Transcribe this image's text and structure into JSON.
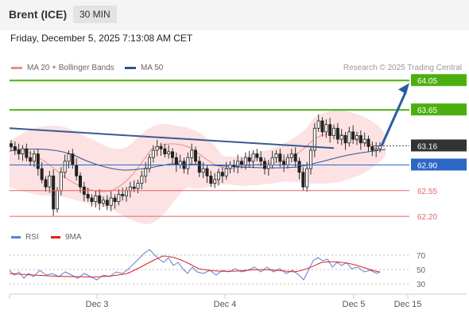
{
  "header": {
    "instrument": "Brent (ICE)",
    "timeframe": "30 MIN"
  },
  "datetime": "Friday, December 5, 2025 7:13:08 AM CET",
  "legend": {
    "ma20": {
      "label": "MA 20 + Bollinger Bands",
      "color": "#f08a8a"
    },
    "ma50": {
      "label": "MA 50",
      "color": "#2d5597"
    }
  },
  "credit": "Research © 2025 Trading Central",
  "rsi_legend": {
    "rsi": {
      "label": "RSI",
      "color": "#5b7fd6"
    },
    "ma9": {
      "label": "9MA",
      "color": "#e02020"
    }
  },
  "chart_data": {
    "type": "candlestick",
    "y_range": [
      62.05,
      64.15
    ],
    "x_ticks": [
      "Dec 3",
      "Dec 4",
      "Dec 5",
      "Dec 15"
    ],
    "current_price": "63.16",
    "price_levels": [
      {
        "value": 64.05,
        "label": "64.05",
        "kind": "resistance",
        "color": "#4caf10"
      },
      {
        "value": 63.65,
        "label": "63.65",
        "kind": "resistance",
        "color": "#4caf10"
      },
      {
        "value": 63.16,
        "label": "63.16",
        "kind": "current",
        "color": "#333333"
      },
      {
        "value": 62.9,
        "label": "62.90",
        "kind": "pivot",
        "color": "#2e66c8"
      },
      {
        "value": 62.55,
        "label": "62.55",
        "kind": "support",
        "color": "#e46464"
      },
      {
        "value": 62.2,
        "label": "62.20",
        "kind": "support",
        "color": "#e46464"
      }
    ],
    "forecast": {
      "from": 63.16,
      "to": 63.95,
      "color": "#2d5c9c"
    },
    "trendline": {
      "from": 63.4,
      "to": 63.13,
      "color": "#3b5a8f"
    },
    "rsi": {
      "levels": [
        "70",
        "50",
        "30"
      ]
    }
  }
}
